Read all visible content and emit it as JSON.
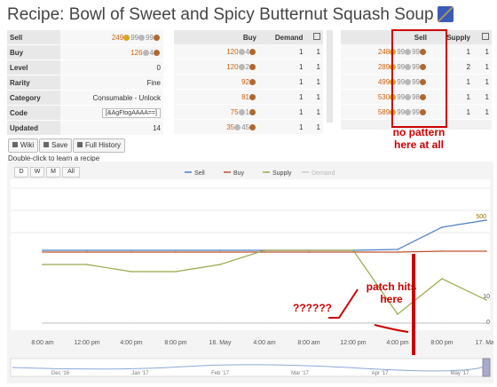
{
  "title": "Recipe: Bowl of Sweet and Spicy Butternut Squash Soup",
  "properties": [
    {
      "key": "Sell",
      "value": "249 99 99"
    },
    {
      "key": "Buy",
      "value": "126 4"
    },
    {
      "key": "Level",
      "value": "0"
    },
    {
      "key": "Rarity",
      "value": "Fine"
    },
    {
      "key": "Category",
      "value": "Consumable - Unlock"
    },
    {
      "key": "Code",
      "value": "[&AgFtogAAAA==]"
    },
    {
      "key": "Updated",
      "value": "14"
    }
  ],
  "buy_table": {
    "headers": [
      "Buy",
      "Demand"
    ],
    "rows": [
      {
        "price": "120 4",
        "demand": "1",
        "qty": "1"
      },
      {
        "price": "120 2",
        "demand": "1",
        "qty": "1"
      },
      {
        "price": "92",
        "demand": "1",
        "qty": "1"
      },
      {
        "price": "81",
        "demand": "1",
        "qty": "1"
      },
      {
        "price": "75 1",
        "demand": "1",
        "qty": "1"
      },
      {
        "price": "35 45",
        "demand": "1",
        "qty": "1"
      }
    ]
  },
  "sell_table": {
    "headers": [
      "Sell",
      "Supply"
    ],
    "rows": [
      {
        "price": "248 99 99",
        "supply": "1",
        "qty": "1"
      },
      {
        "price": "289 99 99",
        "supply": "2",
        "qty": "1"
      },
      {
        "price": "499 99 99",
        "supply": "1",
        "qty": "1"
      },
      {
        "price": "530 99 98",
        "supply": "1",
        "qty": "1"
      },
      {
        "price": "589 99 99",
        "supply": "1",
        "qty": "1"
      }
    ]
  },
  "buttons": {
    "wiki": "Wiki",
    "save": "Save",
    "history": "Full History"
  },
  "hint": "Double-click to learn a recipe",
  "ranges": [
    "D",
    "W",
    "M",
    "All"
  ],
  "legend": [
    "Sell",
    "Buy",
    "Supply",
    "Demand"
  ],
  "colors": {
    "sell": "#4a7fc0",
    "buy": "#c05030",
    "supply": "#9aa84a",
    "demand": "#cccccc",
    "annotation": "#cc0000"
  },
  "x_ticks": [
    "8:00 am",
    "12:00 pm",
    "4:00 pm",
    "8:00 pm",
    "16. May",
    "4:00 am",
    "8:00 am",
    "12:00 pm",
    "4:00 pm",
    "8:00 pm",
    "17. May"
  ],
  "y_right": {
    "top": "500",
    "mid": "10",
    "bottom": "0"
  },
  "nav_ticks": [
    "Dec '16",
    "Jan '17",
    "Feb '17",
    "Mar '17",
    "Apr '17",
    "May '17"
  ],
  "annotations": {
    "pattern": "no pattern here at all",
    "question": "??????",
    "patch": "patch hits here"
  },
  "chart_data": {
    "type": "line",
    "x": [
      "8:00 am",
      "12:00 pm",
      "4:00 pm",
      "8:00 pm",
      "16. May",
      "4:00 am",
      "8:00 am",
      "12:00 pm",
      "4:00 pm",
      "8:00 pm",
      "17. May"
    ],
    "series": [
      {
        "name": "Sell",
        "values": [
          350,
          350,
          350,
          350,
          350,
          350,
          350,
          350,
          355,
          480,
          520
        ]
      },
      {
        "name": "Buy",
        "values": [
          340,
          340,
          340,
          340,
          340,
          340,
          340,
          340,
          340,
          345,
          345
        ]
      },
      {
        "name": "Supply",
        "values": [
          8,
          8,
          7,
          7,
          8,
          10,
          10,
          10,
          1,
          6,
          3
        ]
      },
      {
        "name": "Demand",
        "values": [
          0,
          0,
          0,
          0,
          0,
          0,
          0,
          0,
          0,
          0,
          0
        ]
      }
    ]
  }
}
